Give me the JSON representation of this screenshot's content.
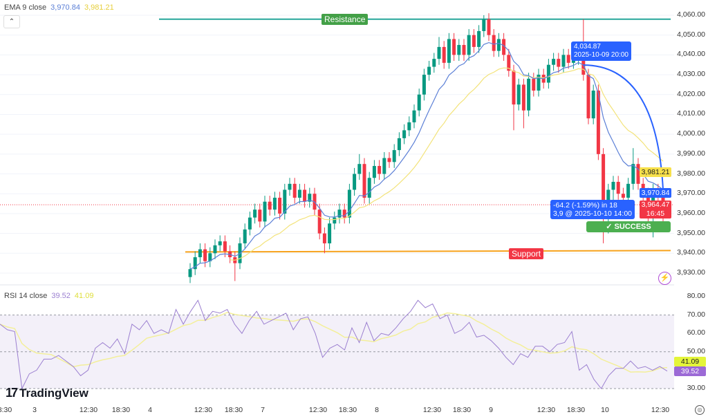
{
  "legend": {
    "ema": {
      "label": "EMA 9 close",
      "value1": "3,970.84",
      "value2": "3,981.21"
    },
    "rsi": {
      "label": "RSI 14 close",
      "value1": "39.52",
      "value2": "41.09"
    }
  },
  "colors": {
    "up": "#089981",
    "down": "#f23645",
    "ema_fast": "#5b7fd6",
    "ema_slow": "#f3e37a",
    "rsi": "#9b7fd0",
    "rsi_ma": "#f3ef9a",
    "resistance": "#26a69a",
    "support": "#f7a21b",
    "projection": "#2962ff"
  },
  "annotations": {
    "resistance": "Resistance",
    "support": "Support",
    "start_box": {
      "price": "4,034.87",
      "date": "2025-10-09 20:00"
    },
    "end_box": {
      "change": "-64.2 (-1.59%) in 18",
      "detail": "3,9 @ 2025-10-10 14:00"
    },
    "success": "✓ SUCCESS"
  },
  "badges": {
    "ema_slow": "3,981.21",
    "ema_fast": "3,970.84",
    "last_price": "3,964.47",
    "countdown": "16:45",
    "rsi_ma": "41.09",
    "rsi": "39.52"
  },
  "branding": "TradingView",
  "icons": {
    "collapse": "chevron-up-icon",
    "alert": "lightning-icon",
    "settings": "gear-icon"
  },
  "chart_data": {
    "type": "candlestick",
    "price_axis": {
      "ticks": [
        "4,060.00",
        "4,050.00",
        "4,040.00",
        "4,030.00",
        "4,020.00",
        "4,010.00",
        "4,000.00",
        "3,990.00",
        "3,980.00",
        "3,970.00",
        "3,960.00",
        "3,950.00",
        "3,940.00",
        "3,930.00"
      ],
      "range": [
        3926,
        4063
      ]
    },
    "time_axis": [
      "8:30",
      "3",
      "12:30",
      "18:30",
      "4",
      "12:30",
      "18:30",
      "7",
      "12:30",
      "18:30",
      "8",
      "12:30",
      "18:30",
      "9",
      "12:30",
      "18:30",
      "10",
      "12:30"
    ],
    "levels": {
      "resistance": 4058,
      "support": 3941
    },
    "last_price": 3964.47,
    "open": [
      3928,
      3932,
      3938,
      3942,
      3936,
      3940,
      3944,
      3946,
      3941,
      3938,
      3935,
      3945,
      3952,
      3958,
      3962,
      3956,
      3966,
      3962,
      3968,
      3960,
      3972,
      3975,
      3968,
      3972,
      3966,
      3970,
      3962,
      3950,
      3945,
      3955,
      3958,
      3962,
      3958,
      3972,
      3980,
      3985,
      3968,
      3978,
      3984,
      3980,
      3988,
      3986,
      3992,
      3998,
      4002,
      4006,
      4012,
      4020,
      4030,
      4034,
      4038,
      4044,
      4036,
      4048,
      4040,
      4045,
      4040,
      4050,
      4044,
      4052,
      4058,
      4050,
      4042,
      4048,
      4040,
      4032,
      4015,
      4025,
      4012,
      4028,
      4022,
      4030,
      4026,
      4035,
      4038,
      4034,
      4040,
      4036,
      4038,
      4042,
      4030,
      4008,
      4022,
      3990,
      3960,
      3972,
      3976,
      3970,
      3968,
      3975,
      3985,
      3975,
      3970,
      3962,
      3972,
      3968
    ],
    "high": [
      3935,
      3941,
      3945,
      3945,
      3943,
      3947,
      3949,
      3949,
      3944,
      3941,
      3948,
      3955,
      3961,
      3965,
      3965,
      3969,
      3969,
      3971,
      3971,
      3975,
      3978,
      3978,
      3975,
      3975,
      3973,
      3973,
      3965,
      3953,
      3958,
      3961,
      3965,
      3965,
      3975,
      3983,
      3990,
      3988,
      3981,
      3987,
      3987,
      3991,
      3991,
      3995,
      4001,
      4005,
      4009,
      4015,
      4023,
      4033,
      4037,
      4041,
      4049,
      4047,
      4051,
      4051,
      4048,
      4048,
      4053,
      4053,
      4055,
      4060,
      4061,
      4053,
      4051,
      4051,
      4043,
      4035,
      4028,
      4028,
      4031,
      4031,
      4033,
      4033,
      4038,
      4041,
      4041,
      4043,
      4043,
      4041,
      4045,
      4058,
      4033,
      4025,
      4025,
      3993,
      3975,
      3979,
      3979,
      3973,
      3978,
      3993,
      3988,
      3978,
      3973,
      3975,
      3975,
      3971
    ],
    "low": [
      3925,
      3929,
      3935,
      3933,
      3933,
      3937,
      3941,
      3938,
      3935,
      3926,
      3932,
      3942,
      3949,
      3955,
      3953,
      3953,
      3959,
      3959,
      3957,
      3957,
      3969,
      3965,
      3965,
      3963,
      3963,
      3959,
      3947,
      3940,
      3942,
      3952,
      3955,
      3955,
      3955,
      3969,
      3977,
      3965,
      3965,
      3975,
      3977,
      3977,
      3983,
      3983,
      3989,
      3995,
      3999,
      4003,
      4009,
      4017,
      4027,
      4031,
      4035,
      4033,
      4033,
      4037,
      4037,
      4037,
      4037,
      4041,
      4041,
      4049,
      4047,
      4039,
      4039,
      4037,
      4029,
      4002,
      4012,
      4003,
      4009,
      4019,
      4019,
      4023,
      4023,
      4032,
      4031,
      4031,
      4033,
      4033,
      4035,
      4027,
      4005,
      4005,
      3987,
      3945,
      3950,
      3965,
      3967,
      3960,
      3965,
      3972,
      3972,
      3960,
      3955,
      3948,
      3965,
      3955
    ],
    "close": [
      3932,
      3938,
      3942,
      3936,
      3940,
      3944,
      3946,
      3941,
      3938,
      3935,
      3945,
      3952,
      3958,
      3962,
      3956,
      3966,
      3962,
      3968,
      3960,
      3972,
      3975,
      3968,
      3972,
      3966,
      3970,
      3962,
      3950,
      3945,
      3955,
      3958,
      3962,
      3958,
      3972,
      3980,
      3985,
      3968,
      3978,
      3984,
      3980,
      3988,
      3986,
      3992,
      3998,
      4002,
      4006,
      4012,
      4020,
      4030,
      4034,
      4038,
      4044,
      4036,
      4048,
      4040,
      4045,
      4040,
      4050,
      4044,
      4052,
      4058,
      4050,
      4042,
      4048,
      4040,
      4032,
      4015,
      4025,
      4012,
      4028,
      4022,
      4030,
      4026,
      4035,
      4038,
      4034,
      4040,
      4036,
      4038,
      4042,
      4030,
      4008,
      4022,
      3990,
      3960,
      3972,
      3976,
      3970,
      3968,
      3975,
      3985,
      3975,
      3970,
      3962,
      3972,
      3968,
      3964.47
    ],
    "rsi": {
      "ticks": [
        "80.00",
        "70.00",
        "60.00",
        "50.00",
        "30.00"
      ],
      "range": [
        25,
        83
      ],
      "bands": [
        70,
        50,
        30
      ],
      "values": [
        65,
        62,
        61,
        30,
        38,
        40,
        46,
        46,
        48,
        45,
        42,
        37,
        40,
        52,
        55,
        52,
        57,
        49,
        65,
        62,
        67,
        60,
        62,
        60,
        73,
        65,
        72,
        78,
        67,
        72,
        71,
        73,
        65,
        60,
        67,
        72,
        65,
        67,
        69,
        71,
        62,
        68,
        69,
        60,
        47,
        52,
        54,
        51,
        63,
        55,
        66,
        56,
        60,
        59,
        63,
        68,
        72,
        78,
        74,
        76,
        68,
        70,
        60,
        62,
        66,
        58,
        59,
        56,
        52,
        47,
        43,
        49,
        47,
        53,
        53,
        50,
        54,
        55,
        61,
        40,
        43,
        35,
        30,
        37,
        41,
        41,
        45,
        41,
        42,
        40,
        42,
        39.52
      ]
    }
  }
}
